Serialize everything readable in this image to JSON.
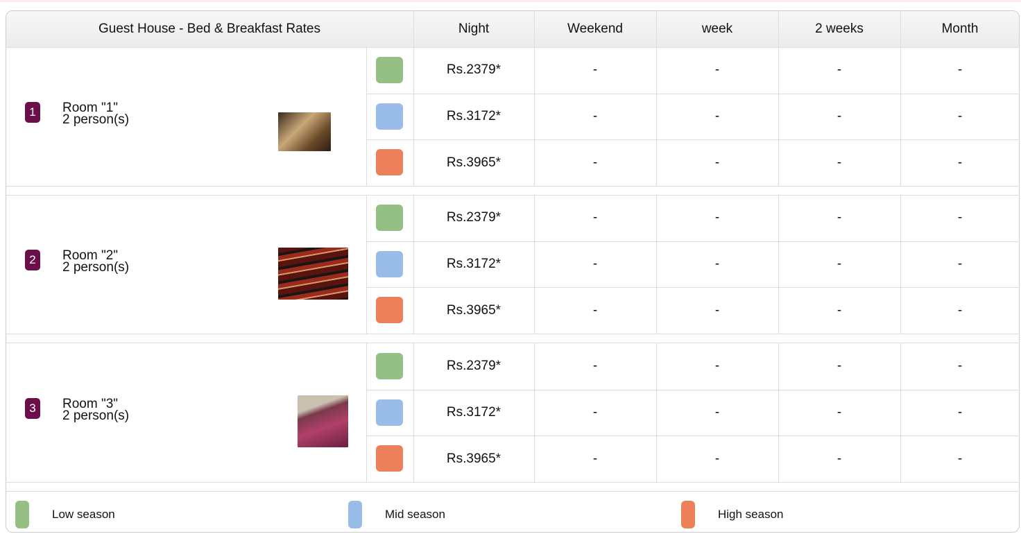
{
  "table": {
    "header": [
      "Guest House - Bed & Breakfast Rates",
      "Night",
      "Weekend",
      "week",
      "2 weeks",
      "Month"
    ],
    "rooms": [
      {
        "number": "1",
        "name": "Room \"1\"",
        "capacity": "2 person(s)",
        "rates": [
          [
            "Rs.2379*",
            "-",
            "-",
            "-",
            "-"
          ],
          [
            "Rs.3172*",
            "-",
            "-",
            "-",
            "-"
          ],
          [
            "Rs.3965*",
            "-",
            "-",
            "-",
            "-"
          ]
        ]
      },
      {
        "number": "2",
        "name": "Room \"2\"",
        "capacity": "2 person(s)",
        "rates": [
          [
            "Rs.2379*",
            "-",
            "-",
            "-",
            "-"
          ],
          [
            "Rs.3172*",
            "-",
            "-",
            "-",
            "-"
          ],
          [
            "Rs.3965*",
            "-",
            "-",
            "-",
            "-"
          ]
        ]
      },
      {
        "number": "3",
        "name": "Room \"3\"",
        "capacity": "2 person(s)",
        "rates": [
          [
            "Rs.2379*",
            "-",
            "-",
            "-",
            "-"
          ],
          [
            "Rs.3172*",
            "-",
            "-",
            "-",
            "-"
          ],
          [
            "Rs.3965*",
            "-",
            "-",
            "-",
            "-"
          ]
        ]
      }
    ],
    "seasons": [
      {
        "name": "Low season",
        "color": "#94bf85"
      },
      {
        "name": "Mid season",
        "color": "#99bde8"
      },
      {
        "name": "High season",
        "color": "#ee7f5b"
      }
    ]
  }
}
